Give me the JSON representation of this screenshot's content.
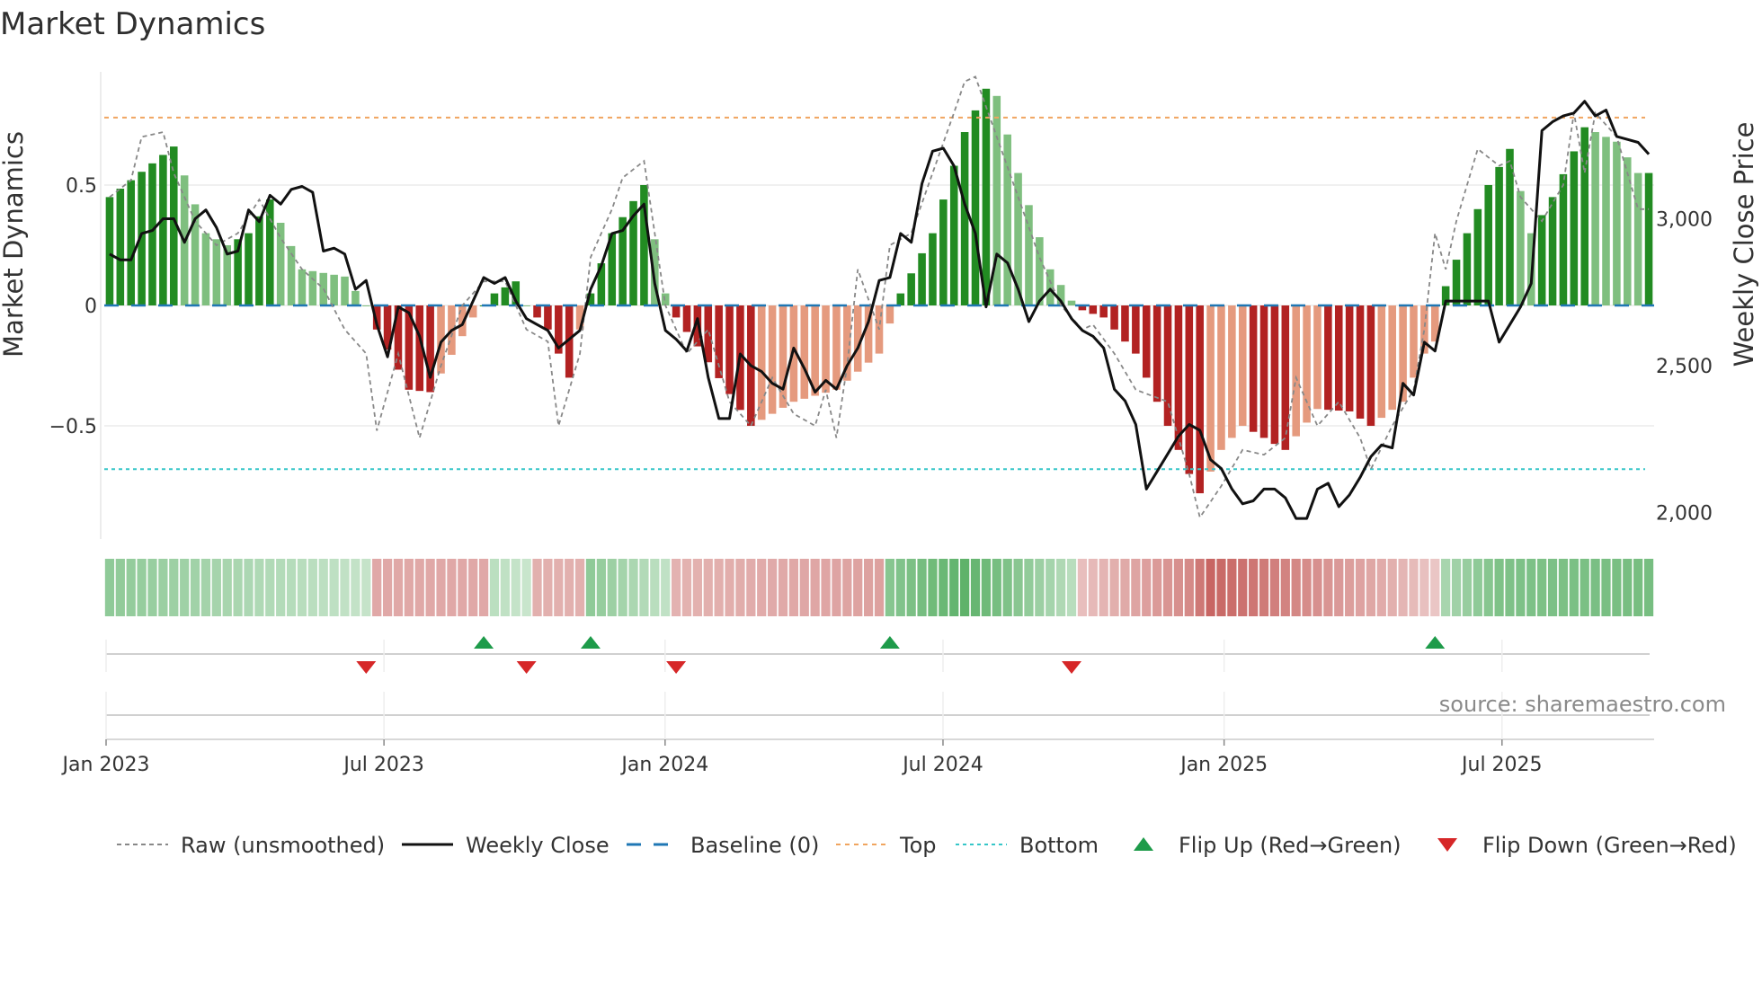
{
  "chart_data": {
    "type": "bar+line",
    "title": "Market Dynamics",
    "ylabel_left": "Market Dynamics",
    "ylabel_right": "Weekly Close Price",
    "left_ylim": [
      -0.97,
      0.97
    ],
    "right_ylim": [
      1910,
      3500
    ],
    "left_ticks": [
      {
        "v": 0.5,
        "label": "0.5"
      },
      {
        "v": 0,
        "label": "0"
      },
      {
        "v": -0.5,
        "label": "−0.5"
      }
    ],
    "right_ticks": [
      {
        "v": 3000,
        "label": "3,000"
      },
      {
        "v": 2500,
        "label": "2,500"
      },
      {
        "v": 2000,
        "label": "2,000"
      }
    ],
    "x_ticks": [
      {
        "pos": 0,
        "label": "Jan 2023"
      },
      {
        "pos": 26,
        "label": "Jul 2023"
      },
      {
        "pos": 52.3,
        "label": "Jan 2024"
      },
      {
        "pos": 78.3,
        "label": "Jul 2024"
      },
      {
        "pos": 104.6,
        "label": "Jan 2025"
      },
      {
        "pos": 130.6,
        "label": "Jul 2025"
      }
    ],
    "n_weeks": 145,
    "top_threshold": 0.78,
    "bottom_threshold": -0.68,
    "baseline": 0,
    "smoothed_anchors": [
      [
        0,
        0.45
      ],
      [
        6,
        0.66
      ],
      [
        9,
        0.3
      ],
      [
        11,
        0.25
      ],
      [
        13,
        0.3
      ],
      [
        15,
        0.44
      ],
      [
        18,
        0.15
      ],
      [
        22,
        0.12
      ],
      [
        24,
        0.0
      ],
      [
        25,
        -0.1
      ],
      [
        28,
        -0.35
      ],
      [
        30,
        -0.36
      ],
      [
        34,
        -0.05
      ],
      [
        36,
        0.05
      ],
      [
        38,
        0.1
      ],
      [
        39,
        0.0
      ],
      [
        41,
        -0.1
      ],
      [
        43,
        -0.3
      ],
      [
        44,
        -0.1
      ],
      [
        45,
        0.05
      ],
      [
        47,
        0.3
      ],
      [
        50,
        0.5
      ],
      [
        52,
        0.05
      ],
      [
        53,
        -0.05
      ],
      [
        55,
        -0.17
      ],
      [
        60,
        -0.5
      ],
      [
        64,
        -0.4
      ],
      [
        68,
        -0.35
      ],
      [
        72,
        -0.2
      ],
      [
        74,
        0.05
      ],
      [
        77,
        0.3
      ],
      [
        80,
        0.72
      ],
      [
        82,
        0.9
      ],
      [
        83,
        0.87
      ],
      [
        85,
        0.55
      ],
      [
        88,
        0.15
      ],
      [
        90,
        0.02
      ],
      [
        91,
        -0.02
      ],
      [
        93,
        -0.05
      ],
      [
        96,
        -0.2
      ],
      [
        99,
        -0.5
      ],
      [
        101,
        -0.7
      ],
      [
        102,
        -0.78
      ],
      [
        104,
        -0.6
      ],
      [
        106,
        -0.5
      ],
      [
        110,
        -0.6
      ],
      [
        113,
        -0.43
      ],
      [
        116,
        -0.44
      ],
      [
        118,
        -0.5
      ],
      [
        121,
        -0.4
      ],
      [
        123,
        -0.2
      ],
      [
        124,
        -0.15
      ],
      [
        125,
        0.08
      ],
      [
        127,
        0.3
      ],
      [
        129,
        0.5
      ],
      [
        131,
        0.65
      ],
      [
        133,
        0.3
      ],
      [
        135,
        0.45
      ],
      [
        137,
        0.64
      ],
      [
        138,
        0.74
      ],
      [
        141,
        0.68
      ],
      [
        143,
        0.55
      ]
    ],
    "raw_anchors": [
      [
        0,
        0.45
      ],
      [
        2,
        0.52
      ],
      [
        3,
        0.7
      ],
      [
        5,
        0.72
      ],
      [
        6,
        0.55
      ],
      [
        8,
        0.35
      ],
      [
        10,
        0.25
      ],
      [
        12,
        0.3
      ],
      [
        14,
        0.44
      ],
      [
        16,
        0.28
      ],
      [
        18,
        0.15
      ],
      [
        20,
        0.07
      ],
      [
        22,
        -0.1
      ],
      [
        24,
        -0.2
      ],
      [
        25,
        -0.52
      ],
      [
        27,
        -0.2
      ],
      [
        29,
        -0.55
      ],
      [
        31,
        -0.25
      ],
      [
        33,
        0.0
      ],
      [
        35,
        0.1
      ],
      [
        37,
        0.1
      ],
      [
        39,
        -0.1
      ],
      [
        41,
        -0.15
      ],
      [
        42,
        -0.5
      ],
      [
        44,
        -0.2
      ],
      [
        45,
        0.2
      ],
      [
        47,
        0.4
      ],
      [
        48,
        0.53
      ],
      [
        50,
        0.6
      ],
      [
        52,
        0.0
      ],
      [
        54,
        -0.2
      ],
      [
        56,
        -0.1
      ],
      [
        58,
        -0.4
      ],
      [
        60,
        -0.5
      ],
      [
        62,
        -0.3
      ],
      [
        64,
        -0.45
      ],
      [
        66,
        -0.5
      ],
      [
        67,
        -0.35
      ],
      [
        68,
        -0.55
      ],
      [
        69,
        -0.25
      ],
      [
        70,
        0.15
      ],
      [
        72,
        -0.1
      ],
      [
        73,
        0.25
      ],
      [
        75,
        0.3
      ],
      [
        77,
        0.55
      ],
      [
        79,
        0.8
      ],
      [
        80,
        0.93
      ],
      [
        81,
        0.95
      ],
      [
        83,
        0.7
      ],
      [
        85,
        0.45
      ],
      [
        87,
        0.2
      ],
      [
        89,
        0.0
      ],
      [
        91,
        -0.1
      ],
      [
        92,
        -0.08
      ],
      [
        94,
        -0.2
      ],
      [
        96,
        -0.35
      ],
      [
        99,
        -0.4
      ],
      [
        101,
        -0.7
      ],
      [
        102,
        -0.88
      ],
      [
        104,
        -0.75
      ],
      [
        106,
        -0.6
      ],
      [
        108,
        -0.62
      ],
      [
        110,
        -0.55
      ],
      [
        111,
        -0.3
      ],
      [
        113,
        -0.5
      ],
      [
        115,
        -0.4
      ],
      [
        117,
        -0.55
      ],
      [
        118,
        -0.68
      ],
      [
        120,
        -0.5
      ],
      [
        122,
        -0.35
      ],
      [
        123,
        -0.1
      ],
      [
        124,
        0.3
      ],
      [
        125,
        0.15
      ],
      [
        126,
        0.35
      ],
      [
        128,
        0.65
      ],
      [
        130,
        0.58
      ],
      [
        131,
        0.6
      ],
      [
        132,
        0.45
      ],
      [
        134,
        0.35
      ],
      [
        136,
        0.5
      ],
      [
        137,
        0.8
      ],
      [
        138,
        0.55
      ],
      [
        139,
        0.8
      ],
      [
        141,
        0.7
      ],
      [
        143,
        0.4
      ]
    ],
    "close_anchors": [
      [
        0,
        2880
      ],
      [
        1,
        2860
      ],
      [
        2,
        2860
      ],
      [
        3,
        2950
      ],
      [
        4,
        2960
      ],
      [
        5,
        3000
      ],
      [
        6,
        3000
      ],
      [
        7,
        2920
      ],
      [
        8,
        3000
      ],
      [
        9,
        3030
      ],
      [
        10,
        2970
      ],
      [
        11,
        2880
      ],
      [
        12,
        2890
      ],
      [
        13,
        3030
      ],
      [
        14,
        2990
      ],
      [
        15,
        3080
      ],
      [
        16,
        3050
      ],
      [
        17,
        3100
      ],
      [
        18,
        3110
      ],
      [
        19,
        3090
      ],
      [
        20,
        2890
      ],
      [
        21,
        2900
      ],
      [
        22,
        2880
      ],
      [
        23,
        2760
      ],
      [
        24,
        2790
      ],
      [
        25,
        2640
      ],
      [
        26,
        2530
      ],
      [
        27,
        2700
      ],
      [
        28,
        2680
      ],
      [
        29,
        2600
      ],
      [
        30,
        2460
      ],
      [
        31,
        2580
      ],
      [
        32,
        2620
      ],
      [
        33,
        2640
      ],
      [
        34,
        2720
      ],
      [
        35,
        2800
      ],
      [
        36,
        2780
      ],
      [
        37,
        2800
      ],
      [
        38,
        2720
      ],
      [
        39,
        2660
      ],
      [
        40,
        2640
      ],
      [
        41,
        2620
      ],
      [
        42,
        2560
      ],
      [
        43,
        2590
      ],
      [
        44,
        2620
      ],
      [
        45,
        2760
      ],
      [
        46,
        2840
      ],
      [
        47,
        2950
      ],
      [
        48,
        2960
      ],
      [
        49,
        3010
      ],
      [
        50,
        3050
      ],
      [
        51,
        2780
      ],
      [
        52,
        2620
      ],
      [
        53,
        2590
      ],
      [
        54,
        2550
      ],
      [
        55,
        2660
      ],
      [
        56,
        2460
      ],
      [
        57,
        2320
      ],
      [
        58,
        2320
      ],
      [
        59,
        2540
      ],
      [
        60,
        2500
      ],
      [
        61,
        2480
      ],
      [
        62,
        2440
      ],
      [
        63,
        2420
      ],
      [
        64,
        2560
      ],
      [
        65,
        2490
      ],
      [
        66,
        2410
      ],
      [
        67,
        2450
      ],
      [
        68,
        2420
      ],
      [
        69,
        2500
      ],
      [
        70,
        2560
      ],
      [
        71,
        2650
      ],
      [
        72,
        2790
      ],
      [
        73,
        2800
      ],
      [
        74,
        2950
      ],
      [
        75,
        2920
      ],
      [
        76,
        3120
      ],
      [
        77,
        3230
      ],
      [
        78,
        3240
      ],
      [
        79,
        3180
      ],
      [
        80,
        3050
      ],
      [
        81,
        2950
      ],
      [
        82,
        2700
      ],
      [
        83,
        2880
      ],
      [
        84,
        2850
      ],
      [
        85,
        2760
      ],
      [
        86,
        2650
      ],
      [
        87,
        2720
      ],
      [
        88,
        2760
      ],
      [
        89,
        2720
      ],
      [
        90,
        2660
      ],
      [
        91,
        2620
      ],
      [
        92,
        2600
      ],
      [
        93,
        2560
      ],
      [
        94,
        2420
      ],
      [
        95,
        2380
      ],
      [
        96,
        2300
      ],
      [
        97,
        2080
      ],
      [
        98,
        2140
      ],
      [
        99,
        2200
      ],
      [
        100,
        2260
      ],
      [
        101,
        2300
      ],
      [
        102,
        2280
      ],
      [
        103,
        2180
      ],
      [
        104,
        2150
      ],
      [
        105,
        2080
      ],
      [
        106,
        2030
      ],
      [
        107,
        2040
      ],
      [
        108,
        2080
      ],
      [
        109,
        2080
      ],
      [
        110,
        2050
      ],
      [
        111,
        1980
      ],
      [
        112,
        1980
      ],
      [
        113,
        2080
      ],
      [
        114,
        2100
      ],
      [
        115,
        2020
      ],
      [
        116,
        2060
      ],
      [
        117,
        2120
      ],
      [
        118,
        2190
      ],
      [
        119,
        2230
      ],
      [
        120,
        2220
      ],
      [
        121,
        2440
      ],
      [
        122,
        2400
      ],
      [
        123,
        2580
      ],
      [
        124,
        2550
      ],
      [
        125,
        2720
      ],
      [
        126,
        2720
      ],
      [
        127,
        2720
      ],
      [
        128,
        2720
      ],
      [
        129,
        2720
      ],
      [
        130,
        2580
      ],
      [
        131,
        2640
      ],
      [
        132,
        2700
      ],
      [
        133,
        2780
      ],
      [
        134,
        3300
      ],
      [
        135,
        3330
      ],
      [
        136,
        3350
      ],
      [
        137,
        3360
      ],
      [
        138,
        3400
      ],
      [
        139,
        3350
      ],
      [
        140,
        3370
      ],
      [
        141,
        3280
      ],
      [
        142,
        3270
      ],
      [
        143,
        3260
      ],
      [
        144,
        3220
      ]
    ],
    "ribbon_anchors": [
      [
        0,
        0.45
      ],
      [
        24,
        0.12
      ],
      [
        25,
        -0.35
      ],
      [
        35,
        -0.35
      ],
      [
        36,
        0.18
      ],
      [
        39,
        0.1
      ],
      [
        40,
        -0.3
      ],
      [
        44,
        -0.3
      ],
      [
        45,
        0.45
      ],
      [
        52,
        0.15
      ],
      [
        53,
        -0.28
      ],
      [
        72,
        -0.4
      ],
      [
        73,
        0.5
      ],
      [
        80,
        0.75
      ],
      [
        84,
        0.55
      ],
      [
        90,
        0.2
      ],
      [
        91,
        -0.2
      ],
      [
        101,
        -0.55
      ],
      [
        103,
        -0.8
      ],
      [
        110,
        -0.6
      ],
      [
        120,
        -0.3
      ],
      [
        124,
        -0.15
      ],
      [
        125,
        0.3
      ],
      [
        130,
        0.55
      ],
      [
        144,
        0.6
      ]
    ],
    "flip_up_weeks": [
      35,
      45,
      73,
      124
    ],
    "flip_down_weeks": [
      24,
      39,
      53,
      90
    ],
    "legend": [
      {
        "key": "raw",
        "label": "Raw (unsmoothed)"
      },
      {
        "key": "close",
        "label": "Weekly Close"
      },
      {
        "key": "baseline",
        "label": "Baseline (0)"
      },
      {
        "key": "top",
        "label": "Top"
      },
      {
        "key": "bottom",
        "label": "Bottom"
      },
      {
        "key": "flipup",
        "label": "Flip Up (Red→Green)"
      },
      {
        "key": "flipdown",
        "label": "Flip Down (Green→Red)"
      }
    ],
    "source_text": "source: sharemaestro.com",
    "colors": {
      "green_strong": "#228b22",
      "green_light": "#7fbf7f",
      "red_strong": "#b22222",
      "red_light": "#e59a7e",
      "top": "#f0a560",
      "bottom": "#36c6c8",
      "baseline": "#1f77b4",
      "close": "#111111",
      "raw": "#888888",
      "flip_up": "#1e9b4a",
      "flip_down": "#d62728"
    }
  }
}
